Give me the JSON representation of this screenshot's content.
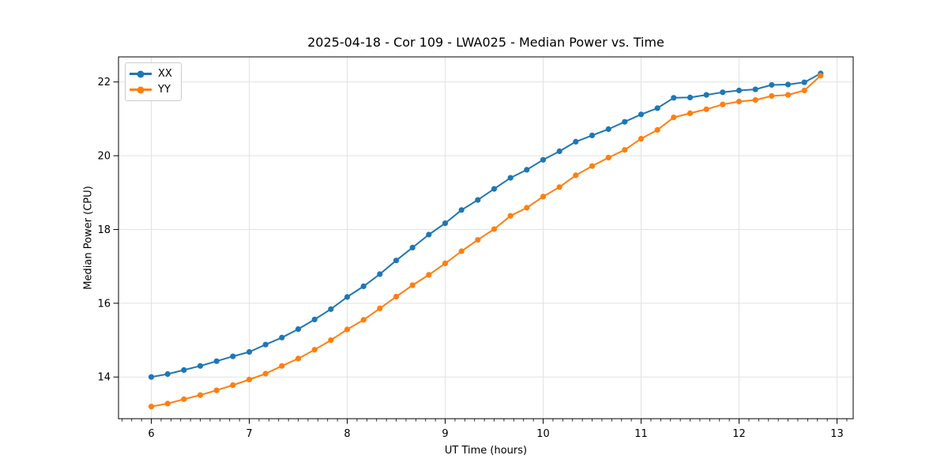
{
  "figure": {
    "background": "#ffffff"
  },
  "chart_data": {
    "type": "line",
    "title": "2025-04-18 - Cor 109 - LWA025 - Median Power vs. Time",
    "xlabel": "UT Time (hours)",
    "ylabel": "Median Power (CPU)",
    "x": [
      6.0,
      6.167,
      6.333,
      6.5,
      6.667,
      6.833,
      7.0,
      7.167,
      7.333,
      7.5,
      7.667,
      7.833,
      8.0,
      8.167,
      8.333,
      8.5,
      8.667,
      8.833,
      9.0,
      9.167,
      9.333,
      9.5,
      9.667,
      9.833,
      10.0,
      10.167,
      10.333,
      10.5,
      10.667,
      10.833,
      11.0,
      11.167,
      11.333,
      11.5,
      11.667,
      11.833,
      12.0,
      12.167,
      12.333,
      12.5,
      12.667,
      12.833
    ],
    "series": [
      {
        "name": "XX",
        "color": "#1f77b4",
        "marker": "circle",
        "values": [
          14.0,
          14.08,
          14.19,
          14.3,
          14.43,
          14.56,
          14.68,
          14.88,
          15.07,
          15.3,
          15.56,
          15.84,
          16.17,
          16.46,
          16.79,
          17.16,
          17.51,
          17.86,
          18.17,
          18.53,
          18.8,
          19.1,
          19.4,
          19.62,
          19.89,
          20.12,
          20.38,
          20.55,
          20.72,
          20.92,
          21.12,
          21.29,
          21.57,
          21.58,
          21.65,
          21.72,
          21.77,
          21.8,
          21.92,
          21.93,
          21.99,
          22.23
        ]
      },
      {
        "name": "YY",
        "color": "#ff7f0e",
        "marker": "circle",
        "values": [
          13.2,
          13.28,
          13.4,
          13.51,
          13.64,
          13.78,
          13.93,
          14.09,
          14.3,
          14.5,
          14.74,
          15.0,
          15.29,
          15.55,
          15.86,
          16.18,
          16.49,
          16.77,
          17.08,
          17.41,
          17.72,
          18.01,
          18.37,
          18.59,
          18.89,
          19.15,
          19.47,
          19.72,
          19.95,
          20.16,
          20.46,
          20.7,
          21.04,
          21.15,
          21.26,
          21.39,
          21.47,
          21.51,
          21.62,
          21.65,
          21.77,
          22.17
        ]
      }
    ],
    "xlim": [
      5.665,
      13.165
    ],
    "ylim": [
      12.87,
      22.68
    ],
    "xticks": [
      6,
      7,
      8,
      9,
      10,
      11,
      12,
      13
    ],
    "yticks": [
      14,
      16,
      18,
      20,
      22
    ],
    "x_minor_tick_step": 0.1,
    "grid": true,
    "grid_color": "#e2e2e2",
    "legend": {
      "position": "upper left",
      "entries": [
        "XX",
        "YY"
      ]
    }
  }
}
